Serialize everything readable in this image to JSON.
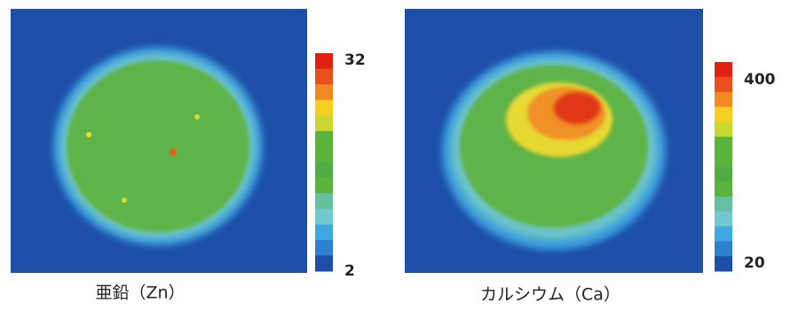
{
  "panels": [
    {
      "caption": "亜鉛（Zn）",
      "colorbar": {
        "max": 32,
        "min": 2
      }
    },
    {
      "caption": "カルシウム（Ca）",
      "colorbar": {
        "max": 400,
        "min": 20
      }
    }
  ]
}
